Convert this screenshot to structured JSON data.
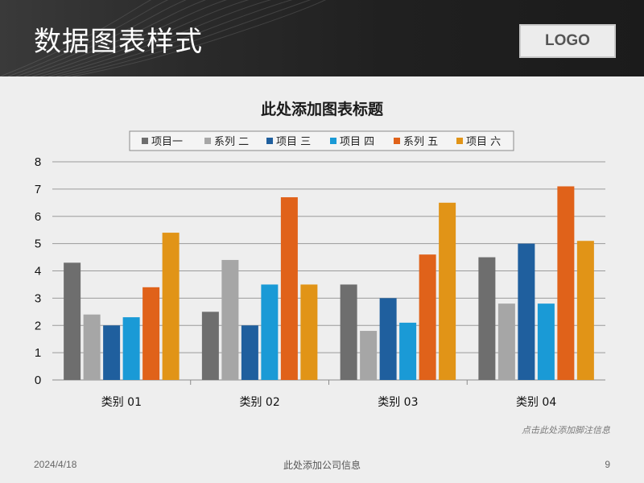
{
  "slide": {
    "title": "数据图表样式",
    "logo": "LOGO",
    "footnote": "点击此处添加脚注信息",
    "footer_date": "2024/4/18",
    "footer_company": "此处添加公司信息",
    "page_number": "9"
  },
  "chart_data": {
    "type": "bar",
    "title": "此处添加图表标题",
    "categories": [
      "类别 01",
      "类别 02",
      "类别 03",
      "类别 04"
    ],
    "series": [
      {
        "name": "项目一",
        "color": "#6e6e6e",
        "values": [
          4.3,
          2.5,
          3.5,
          4.5
        ]
      },
      {
        "name": "系列 二",
        "color": "#a6a6a6",
        "values": [
          2.4,
          4.4,
          1.8,
          2.8
        ]
      },
      {
        "name": "项目 三",
        "color": "#1f5f9e",
        "values": [
          2.0,
          2.0,
          3.0,
          5.0
        ]
      },
      {
        "name": "项目 四",
        "color": "#1a9ad6",
        "values": [
          2.3,
          3.5,
          2.1,
          2.8
        ]
      },
      {
        "name": "系列 五",
        "color": "#e0621a",
        "values": [
          3.4,
          6.7,
          4.6,
          7.1
        ]
      },
      {
        "name": "项目 六",
        "color": "#e19417",
        "values": [
          5.4,
          3.5,
          6.5,
          5.1
        ]
      }
    ],
    "ylim": [
      0,
      8
    ],
    "yticks": [
      0,
      1,
      2,
      3,
      4,
      5,
      6,
      7,
      8
    ],
    "grid": true,
    "legend_position": "top"
  }
}
